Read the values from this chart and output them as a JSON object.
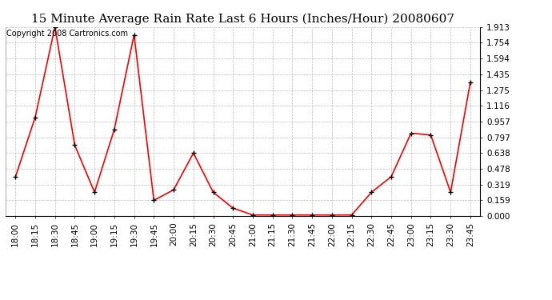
{
  "title": "15 Minute Average Rain Rate Last 6 Hours (Inches/Hour) 20080607",
  "copyright": "Copyright 2008 Cartronics.com",
  "x_labels": [
    "18:00",
    "18:15",
    "18:30",
    "18:45",
    "19:00",
    "19:15",
    "19:30",
    "19:45",
    "20:00",
    "20:15",
    "20:30",
    "20:45",
    "21:00",
    "21:15",
    "21:30",
    "21:45",
    "22:00",
    "22:15",
    "22:30",
    "22:45",
    "23:00",
    "23:15",
    "23:30",
    "23:45"
  ],
  "y_values": [
    0.395,
    1.0,
    1.913,
    0.717,
    0.24,
    0.878,
    1.834,
    0.159,
    0.265,
    0.638,
    0.24,
    0.08,
    0.01,
    0.01,
    0.01,
    0.01,
    0.01,
    0.01,
    0.24,
    0.398,
    0.838,
    0.82,
    0.24,
    1.355
  ],
  "line_color": "#ff0000",
  "marker_color": "#000000",
  "bg_color": "#ffffff",
  "grid_color": "#bbbbbb",
  "yticks": [
    0.0,
    0.159,
    0.319,
    0.478,
    0.638,
    0.797,
    0.957,
    1.116,
    1.275,
    1.435,
    1.594,
    1.754,
    1.913
  ],
  "ylim": [
    0.0,
    1.913
  ],
  "title_fontsize": 11,
  "axis_fontsize": 7.5,
  "copyright_fontsize": 7
}
